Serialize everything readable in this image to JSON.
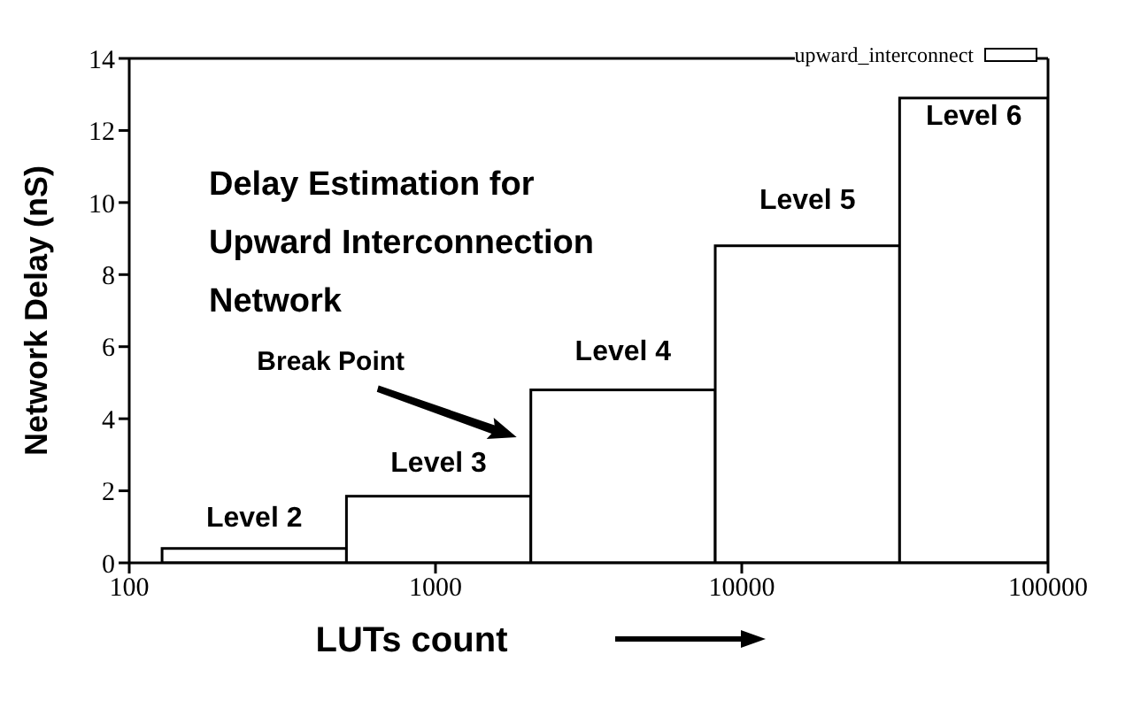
{
  "chart_data": {
    "type": "histogram",
    "title": "Delay Estimation for Upward Interconnection Network",
    "xlabel": "LUTs count",
    "ylabel": "Network Delay (nS)",
    "bins": [
      128,
      512,
      2048,
      8192,
      32768,
      100000
    ],
    "series": [
      {
        "name": "upward_interconnect",
        "color": "#ffffff",
        "values": [
          0.4,
          1.85,
          4.8,
          8.8,
          12.9
        ]
      }
    ],
    "log": "x",
    "xlim": [
      100,
      100000
    ],
    "xticks": [
      100,
      1000,
      10000,
      100000
    ],
    "ylim": [
      0,
      14
    ],
    "yticks": [
      0,
      2,
      4,
      6,
      8,
      10,
      12,
      14
    ],
    "legend": "top right",
    "annotations": [
      "Level 2",
      "Level 3",
      "Level 4",
      "Level 5",
      "Level 6",
      "Break Point"
    ]
  }
}
